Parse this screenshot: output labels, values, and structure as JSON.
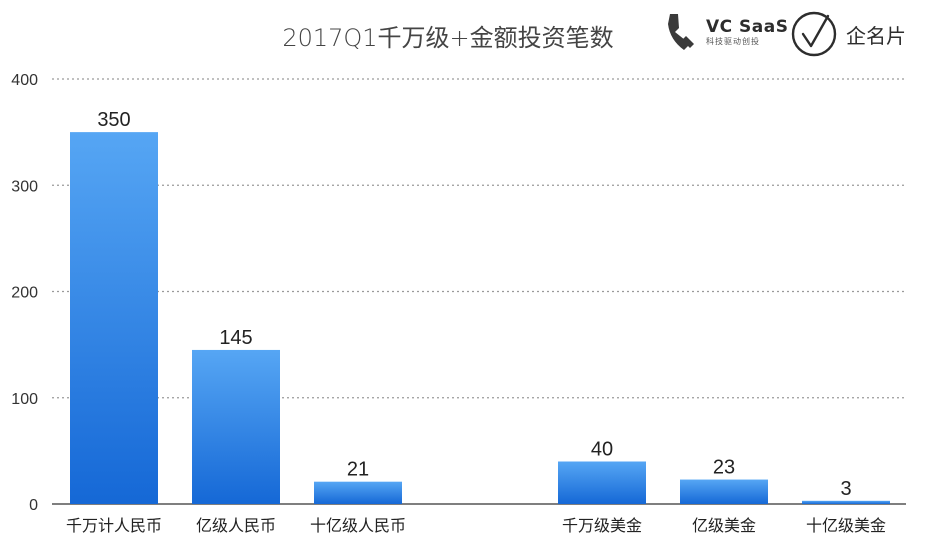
{
  "chart_data": {
    "type": "bar",
    "title": "2017Q1千万级+金额投资笔数",
    "categories": [
      "千万计人民币",
      "亿级人民币",
      "十亿级人民币",
      "千万级美金",
      "亿级美金",
      "十亿级美金"
    ],
    "values": [
      350,
      145,
      21,
      40,
      23,
      3
    ],
    "data_labels": [
      "350",
      "145",
      "21",
      "40",
      "23",
      "3"
    ],
    "ylim": [
      0,
      400
    ],
    "yticks": [
      0,
      100,
      200,
      300,
      400
    ],
    "ytick_labels": [
      "0",
      "100",
      "200",
      "300",
      "400"
    ],
    "xlabel": "",
    "ylabel": "",
    "grid": true,
    "grid_style": "dotted",
    "legend": "none",
    "colors": {
      "bar_top": "#56a6f4",
      "bar_bottom": "#1568d6",
      "grid": "#9a9a9a",
      "axis": "#333333"
    }
  },
  "branding": {
    "vc_name": "VC SaaS",
    "vc_tagline": "科技驱动创投",
    "qmp_name": "企名片",
    "icons": [
      "vc-saas-logo-icon",
      "qimingpian-logo-icon"
    ]
  }
}
